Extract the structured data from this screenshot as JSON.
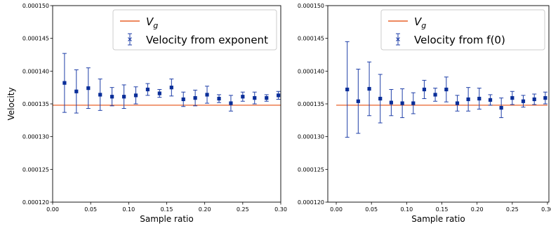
{
  "line_color": "#e8622a",
  "series_color": "#1f3fa8",
  "marker_color": "#0a2e99",
  "chart_data": [
    {
      "type": "scatter",
      "xlabel": "Sample ratio",
      "ylabel": "Velocity",
      "xlim": [
        -0.0,
        0.3
      ],
      "ylim": [
        0.00012,
        0.00015
      ],
      "xticks": [
        "0.00",
        "0.05",
        "0.10",
        "0.15",
        "0.20",
        "0.25",
        "0.30"
      ],
      "yticks": [
        "0.000120",
        "0.000125",
        "0.000130",
        "0.000135",
        "0.000140",
        "0.000145",
        "0.000150"
      ],
      "legend": [
        "V_g",
        "Velocity from exponent"
      ],
      "legend_position": "top-right",
      "reference_line": {
        "name": "V_g",
        "y": 0.0001348,
        "x_start": 0.0,
        "x_end": 0.3
      },
      "series": [
        {
          "name": "Velocity from exponent",
          "x": [
            0.0156,
            0.0312,
            0.0469,
            0.0625,
            0.0781,
            0.0938,
            0.1094,
            0.125,
            0.1406,
            0.1563,
            0.1719,
            0.1875,
            0.2031,
            0.2188,
            0.2344,
            0.25,
            0.2656,
            0.2813,
            0.2969
          ],
          "y": [
            0.0001382,
            0.0001369,
            0.0001374,
            0.0001364,
            0.0001361,
            0.0001361,
            0.0001363,
            0.0001372,
            0.0001366,
            0.0001375,
            0.0001357,
            0.0001359,
            0.0001364,
            0.0001358,
            0.0001351,
            0.0001361,
            0.0001359,
            0.0001359,
            0.0001363
          ],
          "err": [
            4.5e-06,
            3.3e-06,
            3.1e-06,
            2.4e-06,
            1.4e-06,
            1.8e-06,
            1.3e-06,
            9e-07,
            6e-07,
            1.3e-06,
            1.1e-06,
            1.2e-06,
            1.3e-06,
            6e-07,
            1.2e-06,
            7e-07,
            9e-07,
            5e-07,
            6e-07
          ]
        }
      ]
    },
    {
      "type": "scatter",
      "xlabel": "Sample ratio",
      "ylabel": "",
      "xlim": [
        -0.012,
        0.302
      ],
      "ylim": [
        0.00012,
        0.00015
      ],
      "xticks": [
        "0.00",
        "0.05",
        "0.10",
        "0.15",
        "0.20",
        "0.25",
        "0.30"
      ],
      "yticks": [
        "0.000120",
        "0.000125",
        "0.000130",
        "0.000135",
        "0.000140",
        "0.000145",
        "0.000150"
      ],
      "legend": [
        "V_g",
        "Velocity from f(0)"
      ],
      "legend_position": "top-right",
      "reference_line": {
        "name": "V_g",
        "y": 0.0001348,
        "x_start": 0.0,
        "x_end": 0.3
      },
      "series": [
        {
          "name": "Velocity from f(0)",
          "x": [
            0.0156,
            0.0312,
            0.0469,
            0.0625,
            0.0781,
            0.0938,
            0.1094,
            0.125,
            0.1406,
            0.1563,
            0.1719,
            0.1875,
            0.2031,
            0.2188,
            0.2344,
            0.25,
            0.2656,
            0.2813,
            0.2969
          ],
          "y": [
            0.0001372,
            0.0001354,
            0.0001373,
            0.0001358,
            0.0001352,
            0.0001351,
            0.0001351,
            0.0001372,
            0.0001364,
            0.0001372,
            0.0001351,
            0.0001357,
            0.0001358,
            0.0001356,
            0.0001344,
            0.0001359,
            0.0001354,
            0.0001357,
            0.0001359
          ],
          "err": [
            7.3e-06,
            4.9e-06,
            4.1e-06,
            3.7e-06,
            2e-06,
            2.2e-06,
            1.6e-06,
            1.4e-06,
            1e-06,
            1.9e-06,
            1.2e-06,
            1.8e-06,
            1.6e-06,
            8e-07,
            1.5e-06,
            1e-06,
            9e-07,
            8e-07,
            9e-07
          ]
        }
      ]
    }
  ]
}
